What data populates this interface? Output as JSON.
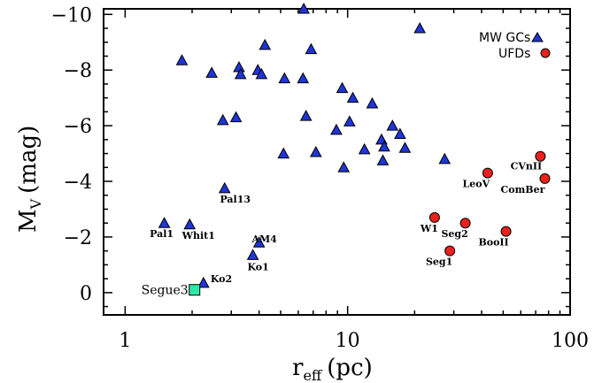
{
  "chart_data": {
    "type": "scatter",
    "xscale": "log",
    "xlim": [
      0.8,
      100
    ],
    "ylim": [
      0.8,
      -10.2
    ],
    "x_ticks": [
      1,
      10,
      100
    ],
    "x_tick_labels": [
      "1",
      "10",
      "100"
    ],
    "y_ticks": [
      -10,
      -8,
      -6,
      -4,
      -2,
      0
    ],
    "y_tick_labels": [
      "−10",
      "−8",
      "−6",
      "−4",
      "−2",
      "0"
    ],
    "xlabel": "r",
    "xlabel_sub": "eff",
    "xlabel_unit": "(pc)",
    "ylabel": "M",
    "ylabel_sub": "V",
    "ylabel_unit": "(mag)",
    "legend": {
      "position": "top-right",
      "entries": [
        {
          "label": "MW GCs",
          "marker": "triangle",
          "color": "#1f35d6"
        },
        {
          "label": "UFDs",
          "marker": "circle",
          "color": "#e8211c"
        }
      ]
    },
    "series": [
      {
        "name": "MW GCs",
        "marker": "triangle",
        "color": "#1f35d6",
        "points": [
          {
            "x": 1.5,
            "y": -2.5,
            "label": "Pal1"
          },
          {
            "x": 1.95,
            "y": -2.45,
            "label": "Whit1"
          },
          {
            "x": 2.8,
            "y": -3.75,
            "label": "Pal13"
          },
          {
            "x": 4.0,
            "y": -1.8,
            "label": "AM4"
          },
          {
            "x": 3.75,
            "y": -1.35,
            "label": "Ko1"
          },
          {
            "x": 2.25,
            "y": -0.35,
            "label": "Ko2"
          },
          {
            "x": 1.8,
            "y": -8.35,
            "label": ""
          },
          {
            "x": 2.45,
            "y": -7.9,
            "label": ""
          },
          {
            "x": 3.25,
            "y": -8.1,
            "label": ""
          },
          {
            "x": 3.3,
            "y": -7.85,
            "label": ""
          },
          {
            "x": 3.95,
            "y": -8.0,
            "label": ""
          },
          {
            "x": 4.1,
            "y": -7.85,
            "label": ""
          },
          {
            "x": 4.25,
            "y": -8.9,
            "label": ""
          },
          {
            "x": 6.35,
            "y": -10.2,
            "label": ""
          },
          {
            "x": 6.85,
            "y": -8.75,
            "label": ""
          },
          {
            "x": 5.2,
            "y": -7.7,
            "label": ""
          },
          {
            "x": 6.3,
            "y": -7.7,
            "label": ""
          },
          {
            "x": 2.75,
            "y": -6.2,
            "label": ""
          },
          {
            "x": 3.15,
            "y": -6.3,
            "label": ""
          },
          {
            "x": 6.5,
            "y": -6.35,
            "label": ""
          },
          {
            "x": 5.15,
            "y": -5.0,
            "label": ""
          },
          {
            "x": 7.2,
            "y": -5.05,
            "label": ""
          },
          {
            "x": 9.45,
            "y": -7.35,
            "label": ""
          },
          {
            "x": 10.55,
            "y": -7.0,
            "label": ""
          },
          {
            "x": 12.9,
            "y": -6.8,
            "label": ""
          },
          {
            "x": 10.2,
            "y": -6.15,
            "label": ""
          },
          {
            "x": 8.9,
            "y": -5.85,
            "label": ""
          },
          {
            "x": 9.6,
            "y": -4.5,
            "label": ""
          },
          {
            "x": 11.9,
            "y": -5.15,
            "label": ""
          },
          {
            "x": 14.2,
            "y": -5.5,
            "label": ""
          },
          {
            "x": 14.6,
            "y": -5.25,
            "label": ""
          },
          {
            "x": 14.4,
            "y": -4.75,
            "label": ""
          },
          {
            "x": 15.9,
            "y": -6.0,
            "label": ""
          },
          {
            "x": 17.2,
            "y": -5.7,
            "label": ""
          },
          {
            "x": 18.1,
            "y": -5.2,
            "label": ""
          },
          {
            "x": 27.3,
            "y": -4.8,
            "label": ""
          },
          {
            "x": 21.1,
            "y": -9.5,
            "label": ""
          }
        ]
      },
      {
        "name": "UFDs",
        "marker": "circle",
        "color": "#e8211c",
        "points": [
          {
            "x": 24.6,
            "y": -2.7,
            "label": "W1"
          },
          {
            "x": 33.8,
            "y": -2.5,
            "label": "Seg2"
          },
          {
            "x": 28.8,
            "y": -1.5,
            "label": "Seg1"
          },
          {
            "x": 51.5,
            "y": -2.2,
            "label": "BooII"
          },
          {
            "x": 42.6,
            "y": -4.3,
            "label": "LeoV"
          },
          {
            "x": 73.5,
            "y": -4.9,
            "label": "CVnII"
          },
          {
            "x": 77.0,
            "y": -4.1,
            "label": "ComBer"
          }
        ]
      },
      {
        "name": "Segue3",
        "marker": "square",
        "color": "#2ee8a6",
        "points": [
          {
            "x": 2.05,
            "y": -0.1,
            "label": "Segue3"
          }
        ]
      }
    ]
  }
}
